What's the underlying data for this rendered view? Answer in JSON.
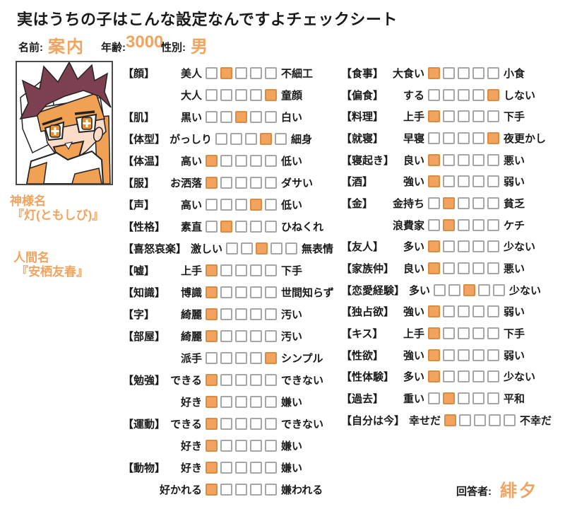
{
  "title": "実はうちの子はこんな設定なんですよチェックシート",
  "profile": {
    "name_label": "名前:",
    "name": "案内",
    "age_label": "年齢:",
    "age": "3000",
    "gender_label": "性別:",
    "gender": "男"
  },
  "side_labels": {
    "god_name_label": "神様名",
    "god_name": "『灯(ともしび)』",
    "human_name_label": "人間名",
    "human_name": "『安栖友春』"
  },
  "colors": {
    "accent": "#F2A45F",
    "checked_box_border": "#D98C42",
    "unchecked_box_border": "#A6A6A6",
    "hair": "#7C4050",
    "skin": "#FADCC9",
    "headband": "#F0A153"
  },
  "checklist": {
    "scale": 5,
    "left": [
      {
        "category": "【顔】",
        "left": "美人",
        "value": 2,
        "right": "不細工"
      },
      {
        "category": "",
        "left": "大人",
        "value": 5,
        "right": "童顔"
      },
      {
        "category": "【肌】",
        "left": "黒い",
        "value": 3,
        "right": "白い"
      },
      {
        "category": "【体型】",
        "left": "がっしり",
        "value": 4,
        "right": "細身"
      },
      {
        "category": "【体温】",
        "left": "高い",
        "value": 1,
        "right": "低い"
      },
      {
        "category": "【服】",
        "left": "お洒落",
        "value": 1,
        "right": "ダサい"
      },
      {
        "category": "【声】",
        "left": "高い",
        "value": 4,
        "right": "低い"
      },
      {
        "category": "【性格】",
        "left": "素直",
        "value": 2,
        "right": "ひねくれ"
      },
      {
        "category": "【喜怒哀楽】",
        "left": "激しい",
        "value": 3,
        "right": "無表情"
      },
      {
        "category": "【嘘】",
        "left": "上手",
        "value": 1,
        "right": "下手"
      },
      {
        "category": "【知識】",
        "left": "博識",
        "value": 1,
        "right": "世間知らず"
      },
      {
        "category": "【字】",
        "left": "綺麗",
        "value": 1,
        "right": "汚い"
      },
      {
        "category": "【部屋】",
        "left": "綺麗",
        "value": 1,
        "right": "汚い"
      },
      {
        "category": "",
        "left": "派手",
        "value": 5,
        "right": "シンプル"
      },
      {
        "category": "【勉強】",
        "left": "できる",
        "value": 1,
        "right": "できない"
      },
      {
        "category": "",
        "left": "好き",
        "value": 1,
        "right": "嫌い"
      },
      {
        "category": "【運動】",
        "left": "できる",
        "value": 1,
        "right": "できない"
      },
      {
        "category": "",
        "left": "好き",
        "value": 1,
        "right": "嫌い"
      },
      {
        "category": "【動物】",
        "left": "好き",
        "value": 1,
        "right": "嫌い"
      },
      {
        "category": "",
        "left": "好かれる",
        "value": 1,
        "right": "嫌われる"
      }
    ],
    "right": [
      {
        "category": "【食事】",
        "left": "大食い",
        "value": 1,
        "right": "小食"
      },
      {
        "category": "【偏食】",
        "left": "する",
        "value": 5,
        "right": "しない"
      },
      {
        "category": "【料理】",
        "left": "上手",
        "value": 1,
        "right": "下手"
      },
      {
        "category": "【就寝】",
        "left": "早寝",
        "value": 5,
        "right": "夜更かし"
      },
      {
        "category": "【寝起き】",
        "left": "良い",
        "value": 1,
        "right": "悪い"
      },
      {
        "category": "【酒】",
        "left": "強い",
        "value": 1,
        "right": "弱い"
      },
      {
        "category": "【金】",
        "left": "金持ち",
        "value": 2,
        "right": "貧乏"
      },
      {
        "category": "",
        "left": "浪費家",
        "value": 2,
        "right": "ケチ"
      },
      {
        "category": "【友人】",
        "left": "多い",
        "value": 1,
        "right": "少ない"
      },
      {
        "category": "【家族仲】",
        "left": "良い",
        "value": 1,
        "right": "悪い"
      },
      {
        "category": "【恋愛経験】",
        "left": "多い",
        "value": 3,
        "right": "少ない"
      },
      {
        "category": "【独占欲】",
        "left": "強い",
        "value": 1,
        "right": "弱い"
      },
      {
        "category": "【キス】",
        "left": "上手",
        "value": 1,
        "right": "下手"
      },
      {
        "category": "【性欲】",
        "left": "強い",
        "value": 1,
        "right": "弱い"
      },
      {
        "category": "【性体験】",
        "left": "多い",
        "value": 1,
        "right": "少ない"
      },
      {
        "category": "【過去】",
        "left": "重い",
        "value": 2,
        "right": "平和"
      },
      {
        "category": "【自分は今】",
        "left": "幸せだ",
        "value": 1,
        "right": "不幸だ"
      }
    ]
  },
  "footer": {
    "respondent_label": "回答者:",
    "respondent": "緋夕"
  }
}
